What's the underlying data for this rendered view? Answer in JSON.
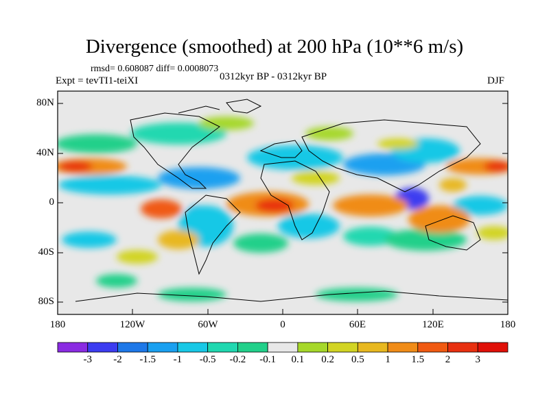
{
  "title": "Divergence (smoothed) at 200 hPa (10**6 m/s)",
  "stats": "rmsd= 0.608087 diff= 0.0008073",
  "experiment": "Expt = tevTI1-teiXI",
  "period": "0312kyr BP - 0312kyr BP",
  "season": "DJF",
  "lat_labels": [
    "80N",
    "40N",
    "0",
    "40S",
    "80S"
  ],
  "lon_labels": [
    "180",
    "120W",
    "60W",
    "0",
    "60E",
    "120E",
    "180"
  ],
  "colorbar": {
    "labels": [
      "-3",
      "-2",
      "-1.5",
      "-1",
      "-0.5",
      "-0.2",
      "-0.1",
      "0.1",
      "0.2",
      "0.5",
      "1",
      "1.5",
      "2",
      "3"
    ],
    "colors": [
      "#8a2be2",
      "#3c3cf0",
      "#1e78e8",
      "#1aa0f0",
      "#18c8e6",
      "#20d8b0",
      "#22d08a",
      "#e8e8e8",
      "#a6d82a",
      "#d2d424",
      "#e8b820",
      "#f08c18",
      "#f05a12",
      "#e83010",
      "#e01008"
    ]
  }
}
